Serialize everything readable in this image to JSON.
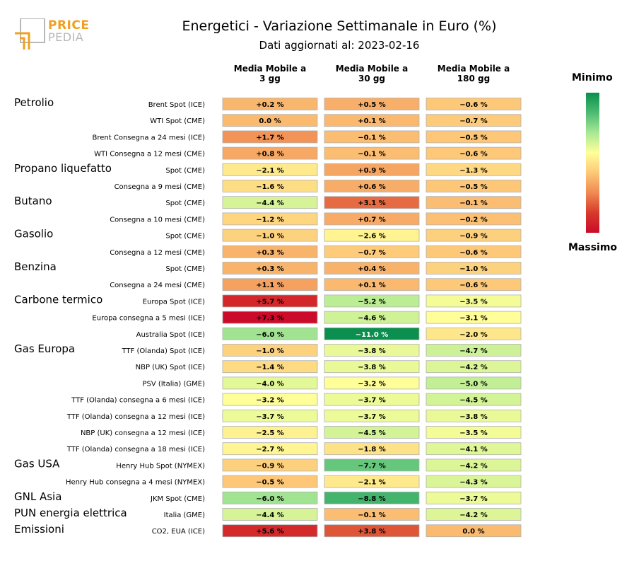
{
  "header": {
    "logo_line1": "PRICE",
    "logo_line2": "PEDIA",
    "title": "Energetici - Variazione Settimanale in Euro (%)",
    "subtitle": "Dati aggiornati al: 2023-02-16"
  },
  "legend": {
    "top_label": "Minimo",
    "bottom_label": "Massimo"
  },
  "colors": {
    "scale": [
      "#0a8f4e",
      "#4dbb72",
      "#a8e894",
      "#ffff99",
      "#fdc878",
      "#f08a52",
      "#d73a2a",
      "#cc0a2a"
    ],
    "brand_orange": "#f0a020",
    "brand_gray": "#b8b8b8"
  },
  "chart_data": {
    "type": "heatmap",
    "columns": [
      "Media Mobile a\n3 gg",
      "Media Mobile a\n30 gg",
      "Media Mobile a\n180 gg"
    ],
    "groups": [
      {
        "name": "Petrolio",
        "start": 0
      },
      {
        "name": "Propano liquefatto",
        "start": 4
      },
      {
        "name": "Butano",
        "start": 6
      },
      {
        "name": "Gasolio",
        "start": 8
      },
      {
        "name": "Benzina",
        "start": 10
      },
      {
        "name": "Carbone termico",
        "start": 12
      },
      {
        "name": "Gas Europa",
        "start": 15
      },
      {
        "name": "Gas USA",
        "start": 22
      },
      {
        "name": "GNL Asia",
        "start": 24
      },
      {
        "name": "PUN energia elettrica",
        "start": 25
      },
      {
        "name": "Emissioni",
        "start": 26
      }
    ],
    "rows": [
      {
        "label": "Brent Spot (ICE)",
        "values": [
          0.2,
          0.5,
          -0.6
        ]
      },
      {
        "label": "WTI Spot (CME)",
        "values": [
          0.0,
          0.1,
          -0.7
        ]
      },
      {
        "label": "Brent Consegna a 24 mesi (ICE)",
        "values": [
          1.7,
          -0.1,
          -0.5
        ]
      },
      {
        "label": "WTI Consegna a 12 mesi (CME)",
        "values": [
          0.8,
          -0.1,
          -0.6
        ]
      },
      {
        "label": "Spot (CME)",
        "values": [
          -2.1,
          0.9,
          -1.3
        ]
      },
      {
        "label": "Consegna a 9 mesi (CME)",
        "values": [
          -1.6,
          0.6,
          -0.5
        ]
      },
      {
        "label": "Spot (CME)",
        "values": [
          -4.4,
          3.1,
          -0.1
        ]
      },
      {
        "label": "Consegna a 10 mesi (CME)",
        "values": [
          -1.2,
          0.7,
          -0.2
        ]
      },
      {
        "label": "Spot (CME)",
        "values": [
          -1.0,
          -2.6,
          -0.9
        ]
      },
      {
        "label": "Consegna a 12 mesi (CME)",
        "values": [
          0.3,
          -0.7,
          -0.6
        ]
      },
      {
        "label": "Spot (CME)",
        "values": [
          0.3,
          0.4,
          -1.0
        ]
      },
      {
        "label": "Consegna a 24 mesi (CME)",
        "values": [
          1.1,
          0.1,
          -0.6
        ]
      },
      {
        "label": "Europa Spot (ICE)",
        "values": [
          5.7,
          -5.2,
          -3.5
        ]
      },
      {
        "label": "Europa consegna a 5 mesi (ICE)",
        "values": [
          7.3,
          -4.6,
          -3.1
        ]
      },
      {
        "label": "Australia Spot (ICE)",
        "values": [
          -6.0,
          -11.0,
          -2.0
        ]
      },
      {
        "label": "TTF (Olanda) Spot (ICE)",
        "values": [
          -1.0,
          -3.8,
          -4.7
        ]
      },
      {
        "label": "NBP (UK) Spot (ICE)",
        "values": [
          -1.4,
          -3.8,
          -4.2
        ]
      },
      {
        "label": "PSV (Italia) (GME)",
        "values": [
          -4.0,
          -3.2,
          -5.0
        ]
      },
      {
        "label": "TTF (Olanda) consegna a 6 mesi (ICE)",
        "values": [
          -3.2,
          -3.7,
          -4.5
        ]
      },
      {
        "label": "TTF (Olanda) consegna a 12 mesi (ICE)",
        "values": [
          -3.7,
          -3.7,
          -3.8
        ]
      },
      {
        "label": "NBP (UK) consegna a 12 mesi (ICE)",
        "values": [
          -2.5,
          -4.5,
          -3.5
        ]
      },
      {
        "label": "TTF (Olanda) consegna a 18 mesi (ICE)",
        "values": [
          -2.7,
          -1.8,
          -4.1
        ]
      },
      {
        "label": "Henry Hub Spot (NYMEX)",
        "values": [
          -0.9,
          -7.7,
          -4.2
        ]
      },
      {
        "label": "Henry Hub consegna a 4 mesi (NYMEX)",
        "values": [
          -0.5,
          -2.1,
          -4.3
        ]
      },
      {
        "label": "JKM Spot (CME)",
        "values": [
          -6.0,
          -8.8,
          -3.7
        ]
      },
      {
        "label": "Italia (GME)",
        "values": [
          -4.4,
          -0.1,
          -4.2
        ]
      },
      {
        "label": "CO2, EUA (ICE)",
        "values": [
          5.6,
          3.8,
          0.0
        ]
      }
    ]
  }
}
